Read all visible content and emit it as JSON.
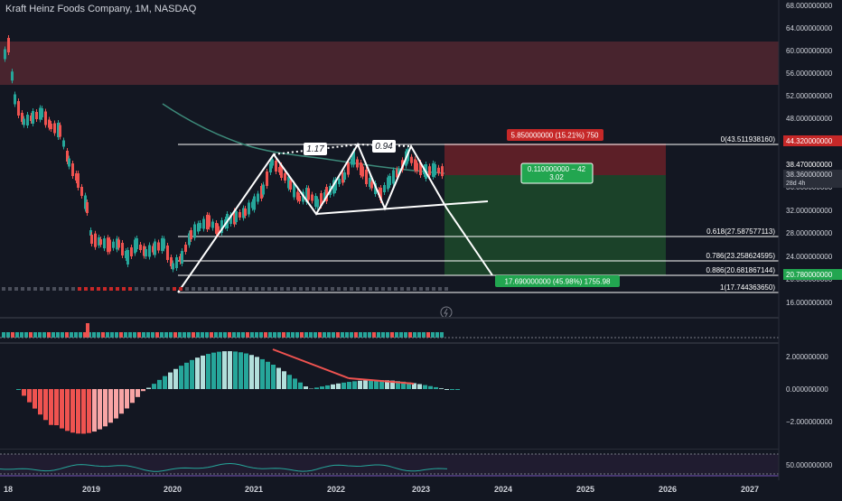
{
  "header": {
    "symbol_title": "Kraft Heinz Foods Company, 1M, NASDAQ"
  },
  "price_axis": {
    "ticks": [
      "68.000000000",
      "64.000000000",
      "60.000000000",
      "56.000000000",
      "52.000000000",
      "48.000000000",
      "40.000000000",
      "36.000000000",
      "32.000000000",
      "28.000000000",
      "24.000000000",
      "20.000000000",
      "16.000000000"
    ],
    "labels": {
      "price_red": "44.320000000",
      "price_white": "38.470000000",
      "price_current": "38.360000000",
      "countdown": "28d 4h",
      "price_green": "20.780000000"
    }
  },
  "osc_axis": {
    "ticks": [
      "2.000000000",
      "0.000000000",
      "−2.000000000"
    ]
  },
  "rsi_axis": {
    "ticks": [
      "50.000000000"
    ]
  },
  "time_axis": {
    "ticks": [
      "18",
      "2019",
      "2020",
      "2021",
      "2022",
      "2023",
      "2024",
      "2025",
      "2026",
      "2027"
    ]
  },
  "fib": {
    "f0": "0(43.511938160)",
    "f618": "0.618(27.587577113)",
    "f786": "0.786(23.258624595)",
    "f886": "0.886(20.681867144)",
    "f1": "1(17.744363650)"
  },
  "pattern_labels": {
    "left": "1.17",
    "right": "0.94"
  },
  "position": {
    "stop_label": "5.850000000 (15.21%) 750",
    "entry_label_1": "0.110000000 − 42",
    "entry_label_2": "3.02",
    "target_label": "17.690000000 (45.98%) 1755.98"
  },
  "colors": {
    "background": "#131722",
    "up": "#26a69a",
    "down": "#ef5350",
    "stop_zone": "#5b1f26",
    "target_zone": "#143c22",
    "line": "#ffffff",
    "ma": "#3d8a7a"
  },
  "icons": {
    "lightning": "lightning-icon"
  }
}
